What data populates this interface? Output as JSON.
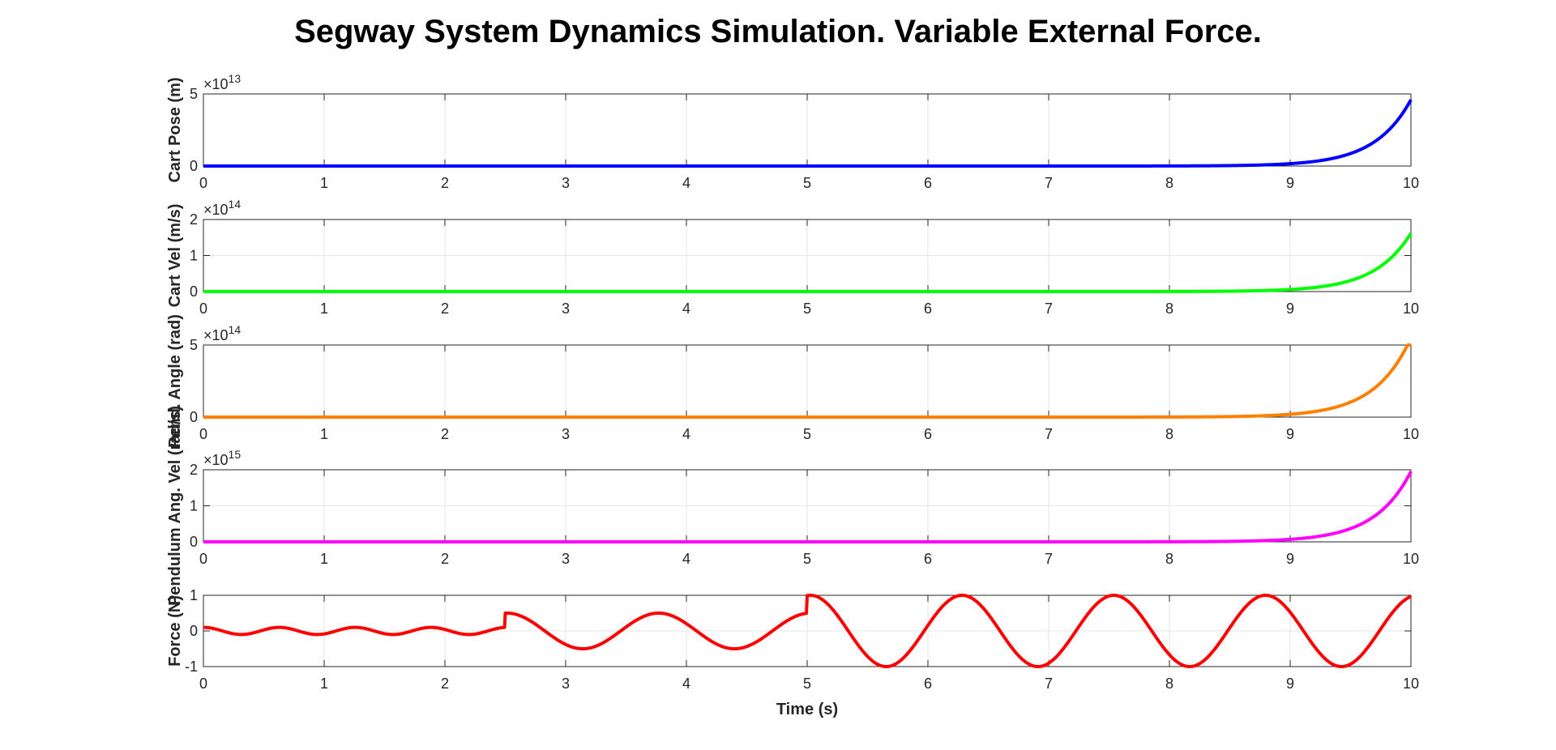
{
  "figure": {
    "title": "Segway System Dynamics Simulation. Variable External Force."
  },
  "chart_data": [
    {
      "type": "line",
      "series": [
        {
          "color": "#0000ff",
          "model": {
            "kind": "exp",
            "end_value": 46000000000000.0,
            "tau": 0.3
          }
        }
      ],
      "ylabel": "Cart Pose (m)",
      "xlim": [
        0,
        10
      ],
      "ylim": [
        0,
        5
      ],
      "y_exponent_label": "×10",
      "y_exponent": "13",
      "y_scale_exp": 13,
      "xticks": [
        "0",
        "1",
        "2",
        "3",
        "4",
        "5",
        "6",
        "7",
        "8",
        "9",
        "10"
      ],
      "yticks": [
        {
          "value": 0,
          "label": "0"
        },
        {
          "value": 5,
          "label": "5"
        }
      ],
      "grid": true
    },
    {
      "type": "line",
      "series": [
        {
          "color": "#00ff00",
          "model": {
            "kind": "exp",
            "end_value": 162000000000000.0,
            "tau": 0.3
          }
        }
      ],
      "ylabel": "Cart Vel (m/s)",
      "xlim": [
        0,
        10
      ],
      "ylim": [
        0,
        2
      ],
      "y_exponent_label": "×10",
      "y_exponent": "14",
      "y_scale_exp": 14,
      "xticks": [
        "0",
        "1",
        "2",
        "3",
        "4",
        "5",
        "6",
        "7",
        "8",
        "9",
        "10"
      ],
      "yticks": [
        {
          "value": 0,
          "label": "0"
        },
        {
          "value": 1,
          "label": "1"
        },
        {
          "value": 2,
          "label": "2"
        }
      ],
      "grid": true
    },
    {
      "type": "line",
      "series": [
        {
          "color": "#ff8000",
          "model": {
            "kind": "exp",
            "end_value": 550000000000000.0,
            "tau": 0.3
          }
        }
      ],
      "ylabel": "Pend. Angle (rad)",
      "xlim": [
        0,
        10
      ],
      "ylim": [
        0,
        5
      ],
      "y_exponent_label": "×10",
      "y_exponent": "14",
      "y_scale_exp": 14,
      "xticks": [
        "0",
        "1",
        "2",
        "3",
        "4",
        "5",
        "6",
        "7",
        "8",
        "9",
        "10"
      ],
      "yticks": [
        {
          "value": 0,
          "label": "0"
        },
        {
          "value": 5,
          "label": "5"
        }
      ],
      "grid": true
    },
    {
      "type": "line",
      "series": [
        {
          "color": "#ff00ff",
          "model": {
            "kind": "exp",
            "end_value": 1950000000000000.0,
            "tau": 0.3
          }
        }
      ],
      "ylabel": "Pendulum Ang. Vel (rad/s)",
      "xlim": [
        0,
        10
      ],
      "ylim": [
        0,
        2
      ],
      "y_exponent_label": "×10",
      "y_exponent": "15",
      "y_scale_exp": 15,
      "xticks": [
        "0",
        "1",
        "2",
        "3",
        "4",
        "5",
        "6",
        "7",
        "8",
        "9",
        "10"
      ],
      "yticks": [
        {
          "value": 0,
          "label": "0"
        },
        {
          "value": 1,
          "label": "1"
        },
        {
          "value": 2,
          "label": "2"
        }
      ],
      "grid": true
    },
    {
      "type": "line",
      "series": [
        {
          "color": "#ff0000",
          "model": {
            "kind": "piecewise_cos",
            "segments": [
              {
                "t0": 0.0,
                "t1": 2.5,
                "amplitude": 0.1,
                "period": 0.6283
              },
              {
                "t0": 2.5,
                "t1": 5.0,
                "amplitude": 0.5,
                "period": 1.2566
              },
              {
                "t0": 5.0,
                "t1": 10.0,
                "amplitude": 1.0,
                "period": 1.2566
              }
            ]
          }
        }
      ],
      "ylabel": "Force (N)",
      "xlabel": "Time (s)",
      "xlim": [
        0,
        10
      ],
      "ylim": [
        -1,
        1
      ],
      "xticks": [
        "0",
        "1",
        "2",
        "3",
        "4",
        "5",
        "6",
        "7",
        "8",
        "9",
        "10"
      ],
      "yticks": [
        {
          "value": -1,
          "label": "-1"
        },
        {
          "value": 0,
          "label": "0"
        },
        {
          "value": 1,
          "label": "1"
        }
      ],
      "grid": true
    }
  ]
}
